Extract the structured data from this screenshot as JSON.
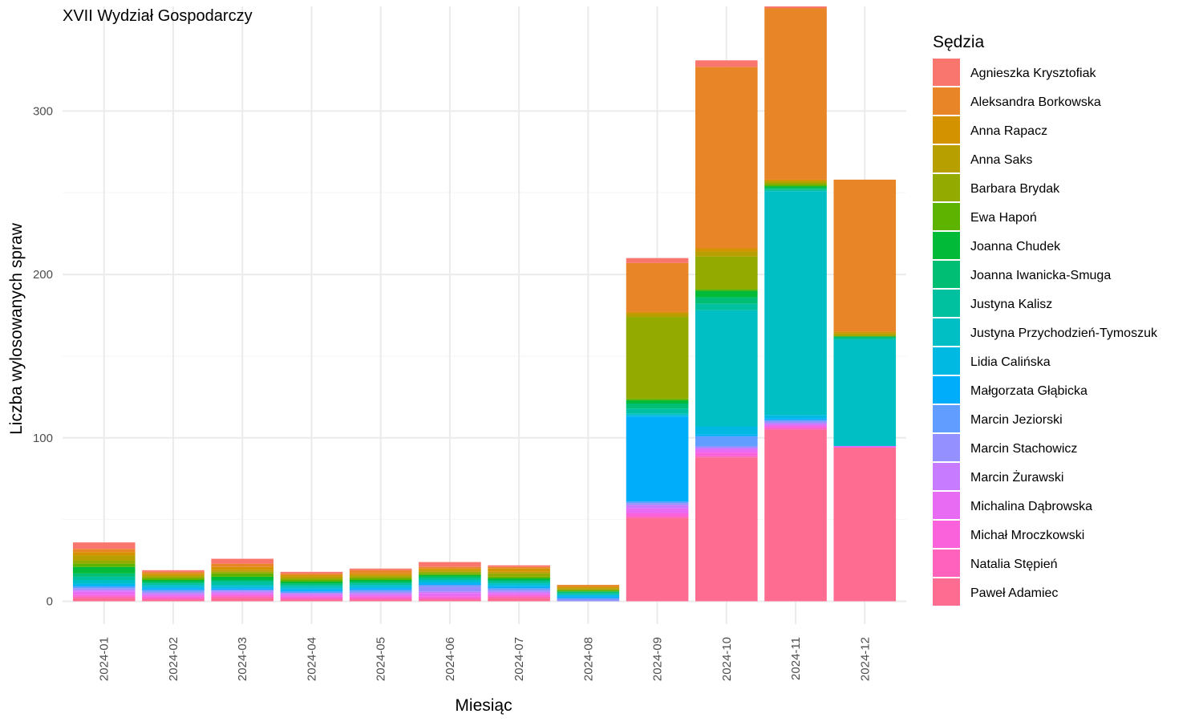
{
  "chart_data": {
    "type": "bar",
    "stacked": true,
    "title": "XVII Wydział Gospodarczy",
    "xlabel": "Miesiąc",
    "ylabel": "Liczba wylosowanych spraw",
    "ylim": [
      -14,
      364
    ],
    "yticks": [
      0,
      100,
      200,
      300
    ],
    "grid": true,
    "legend_title": "Sędzia",
    "legend_position": "right",
    "categories": [
      "2024-01",
      "2024-02",
      "2024-03",
      "2024-04",
      "2024-05",
      "2024-06",
      "2024-07",
      "2024-08",
      "2024-09",
      "2024-10",
      "2024-11",
      "2024-12"
    ],
    "series": [
      {
        "name": "Agnieszka Krysztofiak",
        "color": "#F8766D",
        "values": [
          4,
          1,
          3,
          1,
          1,
          3,
          1,
          0,
          3,
          4,
          1,
          0
        ]
      },
      {
        "name": "Aleksandra Borkowska",
        "color": "#E88526",
        "values": [
          2,
          1,
          2,
          1,
          2,
          1,
          1,
          1,
          30,
          111,
          105,
          93
        ]
      },
      {
        "name": "Anna Rapacz",
        "color": "#D39200",
        "values": [
          2,
          1,
          2,
          1,
          1,
          1,
          2,
          1,
          1,
          2,
          1,
          1
        ]
      },
      {
        "name": "Anna Saks",
        "color": "#B79F00",
        "values": [
          3,
          1,
          1,
          1,
          1,
          1,
          1,
          1,
          2,
          3,
          1,
          1
        ]
      },
      {
        "name": "Barbara Brydak",
        "color": "#93AA00",
        "values": [
          2,
          1,
          1,
          1,
          1,
          1,
          2,
          0,
          50,
          20,
          1,
          1
        ]
      },
      {
        "name": "Ewa Hapoń",
        "color": "#5EB300",
        "values": [
          2,
          1,
          2,
          1,
          1,
          1,
          1,
          1,
          1,
          1,
          1,
          0
        ]
      },
      {
        "name": "Joanna Chudek",
        "color": "#00BA38",
        "values": [
          4,
          1,
          2,
          1,
          1,
          1,
          1,
          0,
          2,
          4,
          1,
          0
        ]
      },
      {
        "name": "Joanna Iwanicka-Smuga",
        "color": "#00BF74",
        "values": [
          2,
          1,
          1,
          1,
          1,
          1,
          1,
          1,
          3,
          4,
          1,
          1
        ]
      },
      {
        "name": "Justyna Kalisz",
        "color": "#00C19F",
        "values": [
          2,
          1,
          2,
          1,
          1,
          1,
          1,
          1,
          3,
          4,
          1,
          1
        ]
      },
      {
        "name": "Justyna Przychodzień-Tymoszuk",
        "color": "#00BFC4",
        "values": [
          2,
          1,
          1,
          1,
          1,
          1,
          1,
          0,
          1,
          71,
          137,
          65
        ]
      },
      {
        "name": "Lidia Calińska",
        "color": "#00B9E3",
        "values": [
          1,
          1,
          1,
          1,
          1,
          1,
          1,
          1,
          1,
          5,
          2,
          0
        ]
      },
      {
        "name": "Małgorzata Głąbicka",
        "color": "#00ADFA",
        "values": [
          1,
          1,
          1,
          1,
          1,
          1,
          1,
          1,
          52,
          1,
          1,
          0
        ]
      },
      {
        "name": "Marcin Jeziorski",
        "color": "#619CFF",
        "values": [
          1,
          1,
          0,
          1,
          1,
          1,
          1,
          1,
          1,
          6,
          1,
          0
        ]
      },
      {
        "name": "Marcin Stachowicz",
        "color": "#9590FF",
        "values": [
          1,
          1,
          1,
          0,
          1,
          3,
          1,
          1,
          1,
          1,
          1,
          0
        ]
      },
      {
        "name": "Marcin Żurawski",
        "color": "#C77CFF",
        "values": [
          1,
          1,
          1,
          1,
          1,
          1,
          1,
          0,
          2,
          1,
          1,
          0
        ]
      },
      {
        "name": "Michalina Dąbrowska",
        "color": "#E76BF3",
        "values": [
          2,
          1,
          1,
          1,
          1,
          2,
          1,
          0,
          3,
          2,
          1,
          1
        ]
      },
      {
        "name": "Michał Mroczkowski",
        "color": "#FA62DB",
        "values": [
          1,
          1,
          1,
          1,
          1,
          1,
          1,
          0,
          2,
          2,
          1,
          0
        ]
      },
      {
        "name": "Natalia Stępień",
        "color": "#FF62BC",
        "values": [
          1,
          1,
          1,
          1,
          1,
          1,
          1,
          0,
          1,
          1,
          1,
          0
        ]
      },
      {
        "name": "Paweł Adamiec",
        "color": "#FF6C91",
        "values": [
          2,
          1,
          2,
          1,
          1,
          1,
          2,
          0,
          51,
          88,
          105,
          94
        ]
      }
    ]
  }
}
